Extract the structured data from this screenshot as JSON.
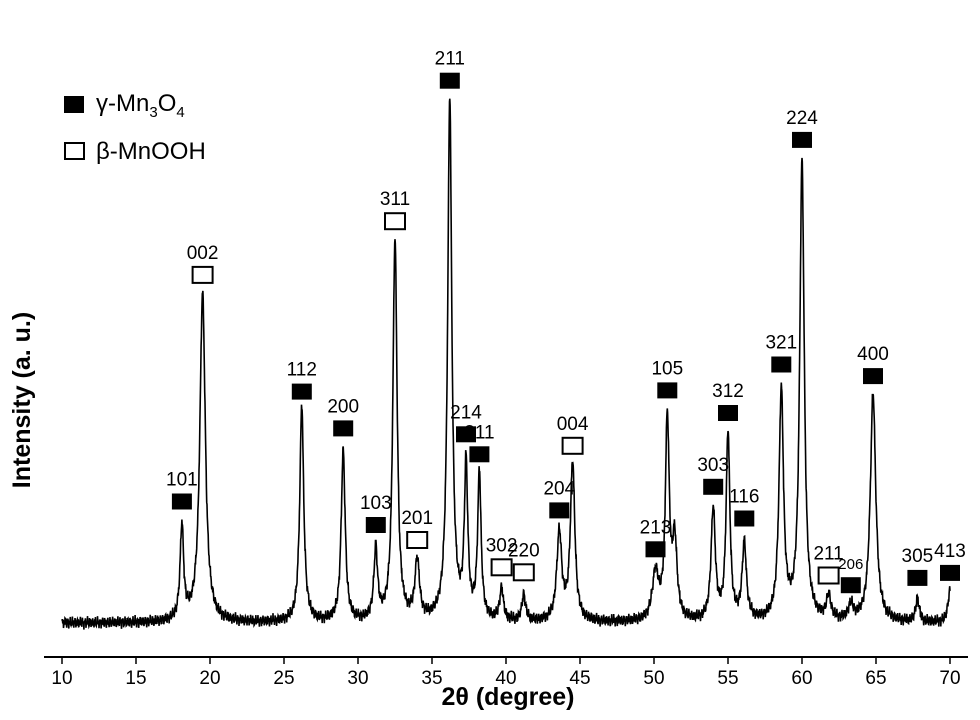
{
  "chart_data": {
    "type": "line",
    "xlabel_main": "2",
    "xlabel_symbol": "θ",
    "xlabel_rest": " (degree)",
    "ylabel": "Intensity (a. u.)",
    "xlim": [
      10,
      70
    ],
    "ylim": [
      0,
      1000
    ],
    "xticks": [
      "10",
      "15",
      "20",
      "25",
      "30",
      "35",
      "40",
      "45",
      "50",
      "55",
      "60",
      "65",
      "70"
    ],
    "legend": {
      "placement": "top-left",
      "entries": [
        {
          "marker": "filled",
          "prefix": "γ-Mn",
          "sub1": "3",
          "mid": "O",
          "sub2": "4"
        },
        {
          "marker": "open",
          "prefix": "β-MnOOH"
        }
      ]
    },
    "series": [
      {
        "peaks": [
          {
            "x": 18.1,
            "y": 160,
            "w": 0.14
          },
          {
            "x": 19.5,
            "y": 560,
            "w": 0.22
          },
          {
            "x": 26.2,
            "y": 370,
            "w": 0.16
          },
          {
            "x": 29.0,
            "y": 290,
            "w": 0.16
          },
          {
            "x": 31.2,
            "y": 120,
            "w": 0.15
          },
          {
            "x": 32.5,
            "y": 650,
            "w": 0.17
          },
          {
            "x": 34.0,
            "y": 100,
            "w": 0.18
          },
          {
            "x": 36.2,
            "y": 890,
            "w": 0.17
          },
          {
            "x": 37.3,
            "y": 260,
            "w": 0.14
          },
          {
            "x": 38.2,
            "y": 250,
            "w": 0.14
          },
          {
            "x": 39.7,
            "y": 55,
            "w": 0.15
          },
          {
            "x": 41.2,
            "y": 45,
            "w": 0.15
          },
          {
            "x": 43.6,
            "y": 150,
            "w": 0.2
          },
          {
            "x": 44.5,
            "y": 270,
            "w": 0.18
          },
          {
            "x": 50.1,
            "y": 80,
            "w": 0.25
          },
          {
            "x": 50.9,
            "y": 340,
            "w": 0.16
          },
          {
            "x": 51.4,
            "y": 130,
            "w": 0.18
          },
          {
            "x": 54.0,
            "y": 190,
            "w": 0.17
          },
          {
            "x": 55.0,
            "y": 320,
            "w": 0.15
          },
          {
            "x": 56.1,
            "y": 130,
            "w": 0.17
          },
          {
            "x": 58.6,
            "y": 390,
            "w": 0.18
          },
          {
            "x": 60.0,
            "y": 780,
            "w": 0.18
          },
          {
            "x": 61.8,
            "y": 40,
            "w": 0.18
          },
          {
            "x": 63.3,
            "y": 25,
            "w": 0.2
          },
          {
            "x": 64.8,
            "y": 390,
            "w": 0.22
          },
          {
            "x": 67.8,
            "y": 40,
            "w": 0.14
          },
          {
            "x": 70.0,
            "y": 55,
            "w": 0.16
          }
        ]
      }
    ],
    "annotations": [
      {
        "label": "101",
        "x": 18.1,
        "marker": "filled"
      },
      {
        "label": "002",
        "x": 19.5,
        "marker": "open"
      },
      {
        "label": "112",
        "x": 26.2,
        "marker": "filled"
      },
      {
        "label": "200",
        "x": 29.0,
        "marker": "filled"
      },
      {
        "label": "103",
        "x": 31.2,
        "marker": "filled"
      },
      {
        "label": "311",
        "x": 32.5,
        "marker": "open"
      },
      {
        "label": "201",
        "x": 34.0,
        "marker": "open"
      },
      {
        "label": "211",
        "x": 36.2,
        "marker": "filled"
      },
      {
        "label": "214",
        "x": 37.3,
        "marker": "filled"
      },
      {
        "label": "311",
        "x": 38.2,
        "marker": "filled"
      },
      {
        "label": "302",
        "x": 39.7,
        "marker": "open"
      },
      {
        "label": "220",
        "x": 41.2,
        "marker": "open"
      },
      {
        "label": "204",
        "x": 43.6,
        "marker": "filled"
      },
      {
        "label": "004",
        "x": 44.5,
        "marker": "open"
      },
      {
        "label": "213",
        "x": 50.1,
        "marker": "filled"
      },
      {
        "label": "105",
        "x": 50.9,
        "marker": "filled"
      },
      {
        "label": "303",
        "x": 54.0,
        "marker": "filled"
      },
      {
        "label": "312",
        "x": 55.0,
        "marker": "filled"
      },
      {
        "label": "116",
        "x": 56.1,
        "marker": "filled"
      },
      {
        "label": "321",
        "x": 58.6,
        "marker": "filled"
      },
      {
        "label": "224",
        "x": 60.0,
        "marker": "filled"
      },
      {
        "label": "211",
        "x": 61.8,
        "marker": "open"
      },
      {
        "label": "206",
        "x": 63.3,
        "marker": "filled"
      },
      {
        "label": "400",
        "x": 64.8,
        "marker": "filled"
      },
      {
        "label": "305",
        "x": 67.8,
        "marker": "filled"
      },
      {
        "label": "413",
        "x": 70.0,
        "marker": "filled"
      }
    ],
    "grid": false
  }
}
